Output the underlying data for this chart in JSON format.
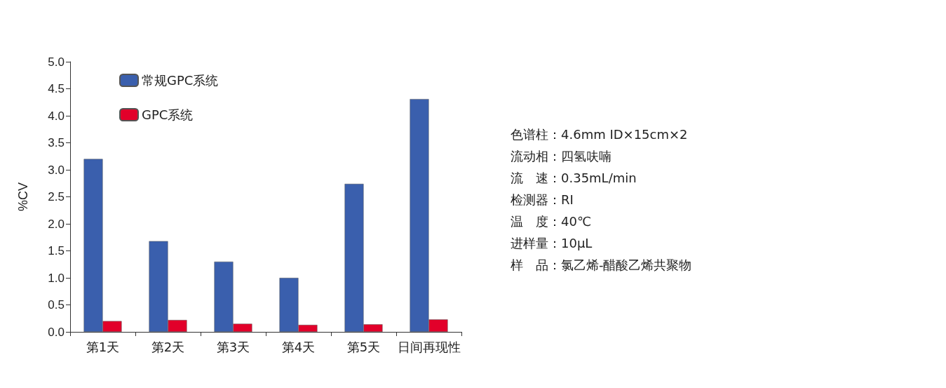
{
  "chart_data": {
    "type": "bar",
    "ylabel": "%CV",
    "categories": [
      "第1天",
      "第2天",
      "第3天",
      "第4天",
      "第5天",
      "日间再现性"
    ],
    "series": [
      {
        "name": "常规GPC系统",
        "color": "#3a5fad",
        "values": [
          3.2,
          1.68,
          1.3,
          1.0,
          2.74,
          4.31
        ]
      },
      {
        "name": "GPC系统",
        "color": "#e2002a",
        "values": [
          0.2,
          0.22,
          0.15,
          0.13,
          0.14,
          0.23
        ]
      }
    ],
    "ylim": [
      0,
      5
    ],
    "yticks": [
      {
        "value": 0,
        "label": "0.0"
      },
      {
        "value": 0.5,
        "label": "0.5"
      },
      {
        "value": 1,
        "label": "1.0"
      },
      {
        "value": 1.5,
        "label": "1.5"
      },
      {
        "value": 2,
        "label": "2.0"
      },
      {
        "value": 2.5,
        "label": "2.5"
      },
      {
        "value": 3,
        "label": "3.0"
      },
      {
        "value": 3.5,
        "label": "3.5"
      },
      {
        "value": 4,
        "label": "4.0"
      },
      {
        "value": 4.5,
        "label": "4.5"
      },
      {
        "value": 5,
        "label": "5.0"
      }
    ],
    "grid": false,
    "legend": "top left",
    "annotations": [
      "色谱柱：4.6mm ID×15cm×2",
      "流动相：四氢呋喃",
      "流　速：0.35mL/min",
      "检测器：RI",
      "温　度：40℃",
      "进样量：10μL",
      "样　品：氯乙烯-醋酸乙烯共聚物"
    ]
  }
}
